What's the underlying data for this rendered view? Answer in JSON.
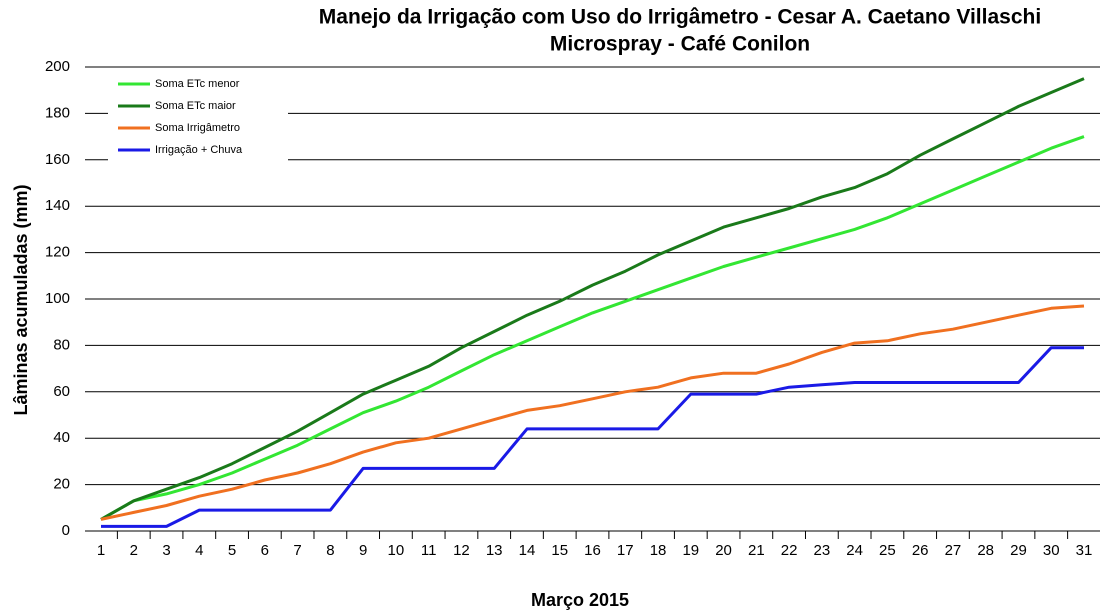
{
  "chart_data": {
    "type": "line",
    "title": "Manejo da Irrigação com Uso do Irrigâmetro - Cesar A. Caetano Villaschi",
    "subtitle": "Microspray - Café Conilon",
    "x_label": "Março 2015",
    "y_label": "Lâminas acumuladas (mm)",
    "categories": [
      "1",
      "2",
      "3",
      "4",
      "5",
      "6",
      "7",
      "8",
      "9",
      "10",
      "11",
      "12",
      "13",
      "14",
      "15",
      "16",
      "17",
      "18",
      "19",
      "20",
      "21",
      "22",
      "23",
      "24",
      "25",
      "26",
      "27",
      "28",
      "29",
      "30",
      "31"
    ],
    "series": [
      {
        "name": "Soma ETc menor",
        "color": "#33e633",
        "values": [
          5,
          13,
          16,
          20,
          25,
          31,
          37,
          44,
          51,
          56,
          62,
          69,
          76,
          82,
          88,
          94,
          99,
          104,
          109,
          114,
          118,
          122,
          126,
          130,
          135,
          141,
          147,
          153,
          159,
          165,
          170
        ]
      },
      {
        "name": "Soma ETc maior",
        "color": "#1a7a1a",
        "values": [
          5,
          13,
          18,
          23,
          29,
          36,
          43,
          51,
          59,
          65,
          71,
          79,
          86,
          93,
          99,
          106,
          112,
          119,
          125,
          131,
          135,
          139,
          144,
          148,
          154,
          162,
          169,
          176,
          183,
          189,
          195
        ]
      },
      {
        "name": "Soma Irrigâmetro",
        "color": "#f07020",
        "values": [
          5,
          8,
          11,
          15,
          18,
          22,
          25,
          29,
          34,
          38,
          40,
          44,
          48,
          52,
          54,
          57,
          60,
          62,
          66,
          68,
          68,
          72,
          77,
          81,
          82,
          85,
          87,
          90,
          93,
          96,
          97
        ]
      },
      {
        "name": "Irrigação + Chuva",
        "color": "#1a1ae6",
        "values": [
          2,
          2,
          2,
          9,
          9,
          9,
          9,
          9,
          27,
          27,
          27,
          27,
          27,
          44,
          44,
          44,
          44,
          44,
          59,
          59,
          59,
          62,
          63,
          64,
          64,
          64,
          64,
          64,
          64,
          79,
          79
        ]
      }
    ],
    "ylim": [
      0,
      200
    ],
    "yticks": [
      0,
      20,
      40,
      60,
      80,
      100,
      120,
      140,
      160,
      180,
      200
    ],
    "grid": true,
    "legend": "top-left"
  }
}
